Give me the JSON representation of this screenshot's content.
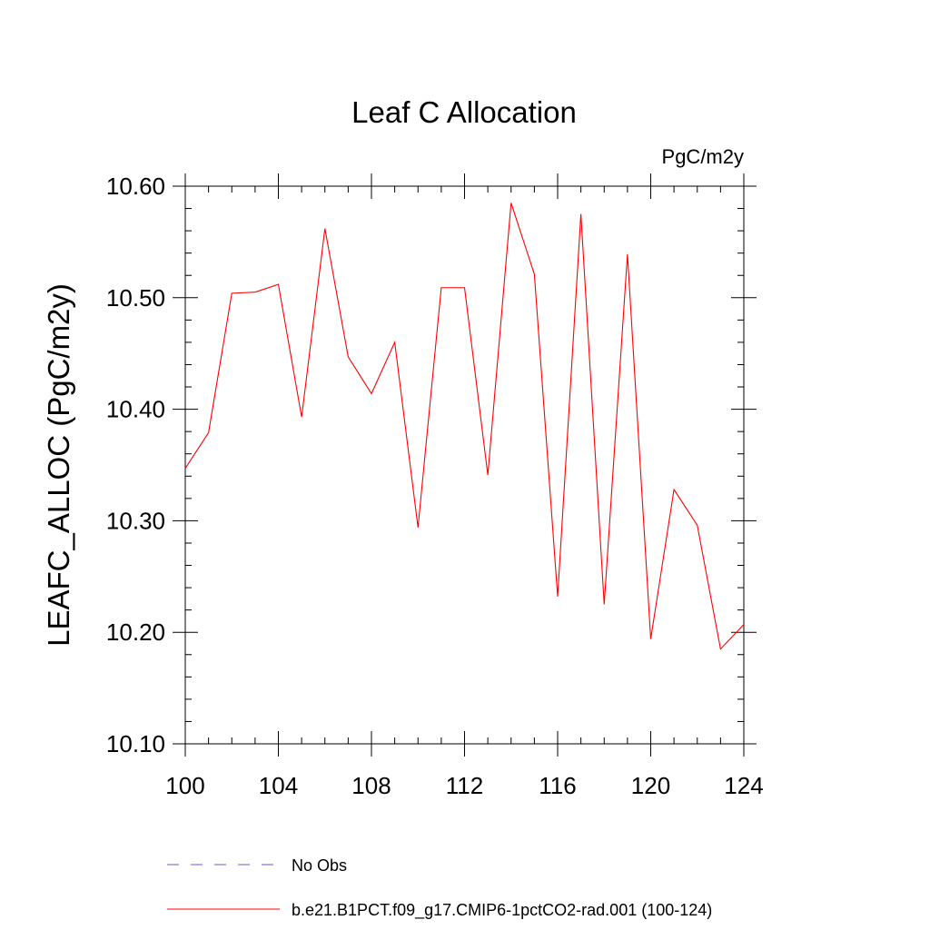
{
  "chart_data": {
    "type": "line",
    "title": "Leaf C Allocation",
    "units": "PgC/m2y",
    "xlabel": "",
    "ylabel": "LEAFC_ALLOC  (PgC/m2y)",
    "xlim": [
      100,
      124
    ],
    "ylim": [
      10.1,
      10.6
    ],
    "x_ticks": [
      100,
      104,
      108,
      112,
      116,
      120,
      124
    ],
    "x_tick_labels": [
      "100",
      "104",
      "108",
      "112",
      "116",
      "120",
      "124"
    ],
    "y_ticks": [
      10.1,
      10.2,
      10.3,
      10.4,
      10.5,
      10.6
    ],
    "y_tick_labels": [
      "10.10",
      "10.20",
      "10.30",
      "10.40",
      "10.50",
      "10.60"
    ],
    "grid": false,
    "legend_position": "bottom",
    "x": [
      100,
      101,
      102,
      103,
      104,
      105,
      106,
      107,
      108,
      109,
      110,
      111,
      112,
      113,
      114,
      115,
      116,
      117,
      118,
      119,
      120,
      121,
      122,
      123,
      124
    ],
    "series": [
      {
        "name": "b.e21.B1PCT.f09_g17.CMIP6-1pctCO2-rad.001 (100-124)",
        "color": "#ff0000",
        "style": "solid",
        "values": [
          10.347,
          10.379,
          10.504,
          10.505,
          10.512,
          10.393,
          10.562,
          10.447,
          10.414,
          10.46,
          10.294,
          10.509,
          10.509,
          10.341,
          10.585,
          10.521,
          10.232,
          10.575,
          10.225,
          10.539,
          10.194,
          10.328,
          10.296,
          10.185,
          10.207
        ]
      }
    ],
    "legend": [
      {
        "label": "No Obs",
        "color": "#6a5acd",
        "style": "dashed"
      },
      {
        "label": "b.e21.B1PCT.f09_g17.CMIP6-1pctCO2-rad.001 (100-124)",
        "color": "#ff0000",
        "style": "solid"
      }
    ]
  }
}
